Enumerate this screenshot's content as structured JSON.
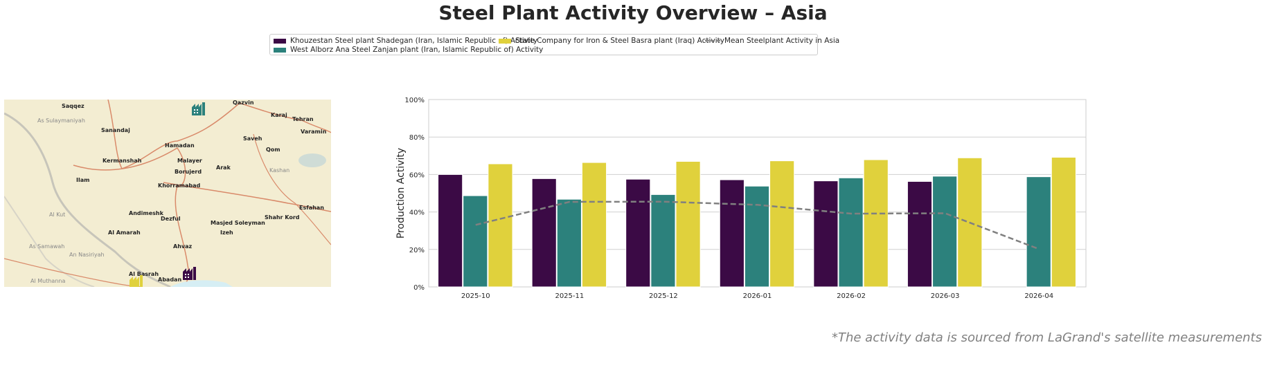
{
  "title": "Steel Plant Activity Overview – Asia",
  "legend": [
    {
      "label": "Khouzestan Steel plant Shadegan (Iran, Islamic Republic of) Activity",
      "color": "#3b0a45"
    },
    {
      "label": "West Alborz Ana Steel Zanjan plant (Iran, Islamic Republic of) Activity",
      "color": "#2c817c"
    },
    {
      "label": "State Company for Iron & Steel Basra plant (Iraq) Activity",
      "color": "#e0d13c"
    },
    {
      "label": "Mean Steelplant Activity in Asia",
      "color": "#808080"
    }
  ],
  "map": {
    "labels": [
      "Saqqez",
      "Qazvin",
      "Karaj",
      "Tehran",
      "Varamin",
      "As Sulaymaniyah",
      "Sanandaj",
      "Hamadan",
      "Saveh",
      "Qom",
      "Kermanshah",
      "Malayer",
      "Arak",
      "Borujerd",
      "Kashan",
      "Ilam",
      "Khorramabad",
      "Andimeshk",
      "Dezful",
      "Esfahan",
      "Al Kut",
      "Shahr Kord",
      "Masjed Soleyman",
      "Al Amarah",
      "Izeh",
      "As Samawah",
      "Ahvaz",
      "An Nasiriyah",
      "Al Basrah",
      "Abadan",
      "Al Muthanna"
    ],
    "markers": [
      {
        "plant": "West Alborz Ana Steel Zanjan plant",
        "color": "#2c817c",
        "icon": "factory-icon"
      },
      {
        "plant": "Khouzestan Steel plant Shadegan",
        "color": "#3b0a45",
        "icon": "factory-icon"
      },
      {
        "plant": "State Company for Iron & Steel Basra plant",
        "color": "#e0d13c",
        "icon": "factory-icon"
      }
    ]
  },
  "chart_data": {
    "type": "bar",
    "ylabel": "Production Activity",
    "xlabel": "",
    "ylim": [
      0,
      100
    ],
    "yticks": [
      "0%",
      "20%",
      "40%",
      "60%",
      "80%",
      "100%"
    ],
    "grid": true,
    "categories": [
      "2025-10",
      "2025-11",
      "2025-12",
      "2026-01",
      "2026-02",
      "2026-03",
      "2026-04"
    ],
    "series": [
      {
        "name": "Khouzestan Steel plant Shadegan (Iran, Islamic Republic of) Activity",
        "type": "bar",
        "color": "#3b0a45",
        "values": [
          60.0,
          57.8,
          57.5,
          57.2,
          56.6,
          56.3,
          null
        ]
      },
      {
        "name": "West Alborz Ana Steel Zanjan plant (Iran, Islamic Republic of) Activity",
        "type": "bar",
        "color": "#2c817c",
        "values": [
          48.7,
          46.8,
          49.3,
          53.8,
          58.2,
          59.1,
          58.8
        ]
      },
      {
        "name": "State Company for Iron & Steel Basra plant (Iraq) Activity",
        "type": "bar",
        "color": "#e0d13c",
        "values": [
          65.7,
          66.4,
          67.0,
          67.3,
          67.9,
          68.9,
          69.2
        ]
      },
      {
        "name": "Mean Steelplant Activity in Asia",
        "type": "line",
        "style": "dashed",
        "color": "#808080",
        "values": [
          33.1,
          45.4,
          45.5,
          43.8,
          39.1,
          39.3,
          20.2
        ]
      }
    ]
  },
  "footnote": "*The activity data is sourced from LaGrand's satellite measurements"
}
